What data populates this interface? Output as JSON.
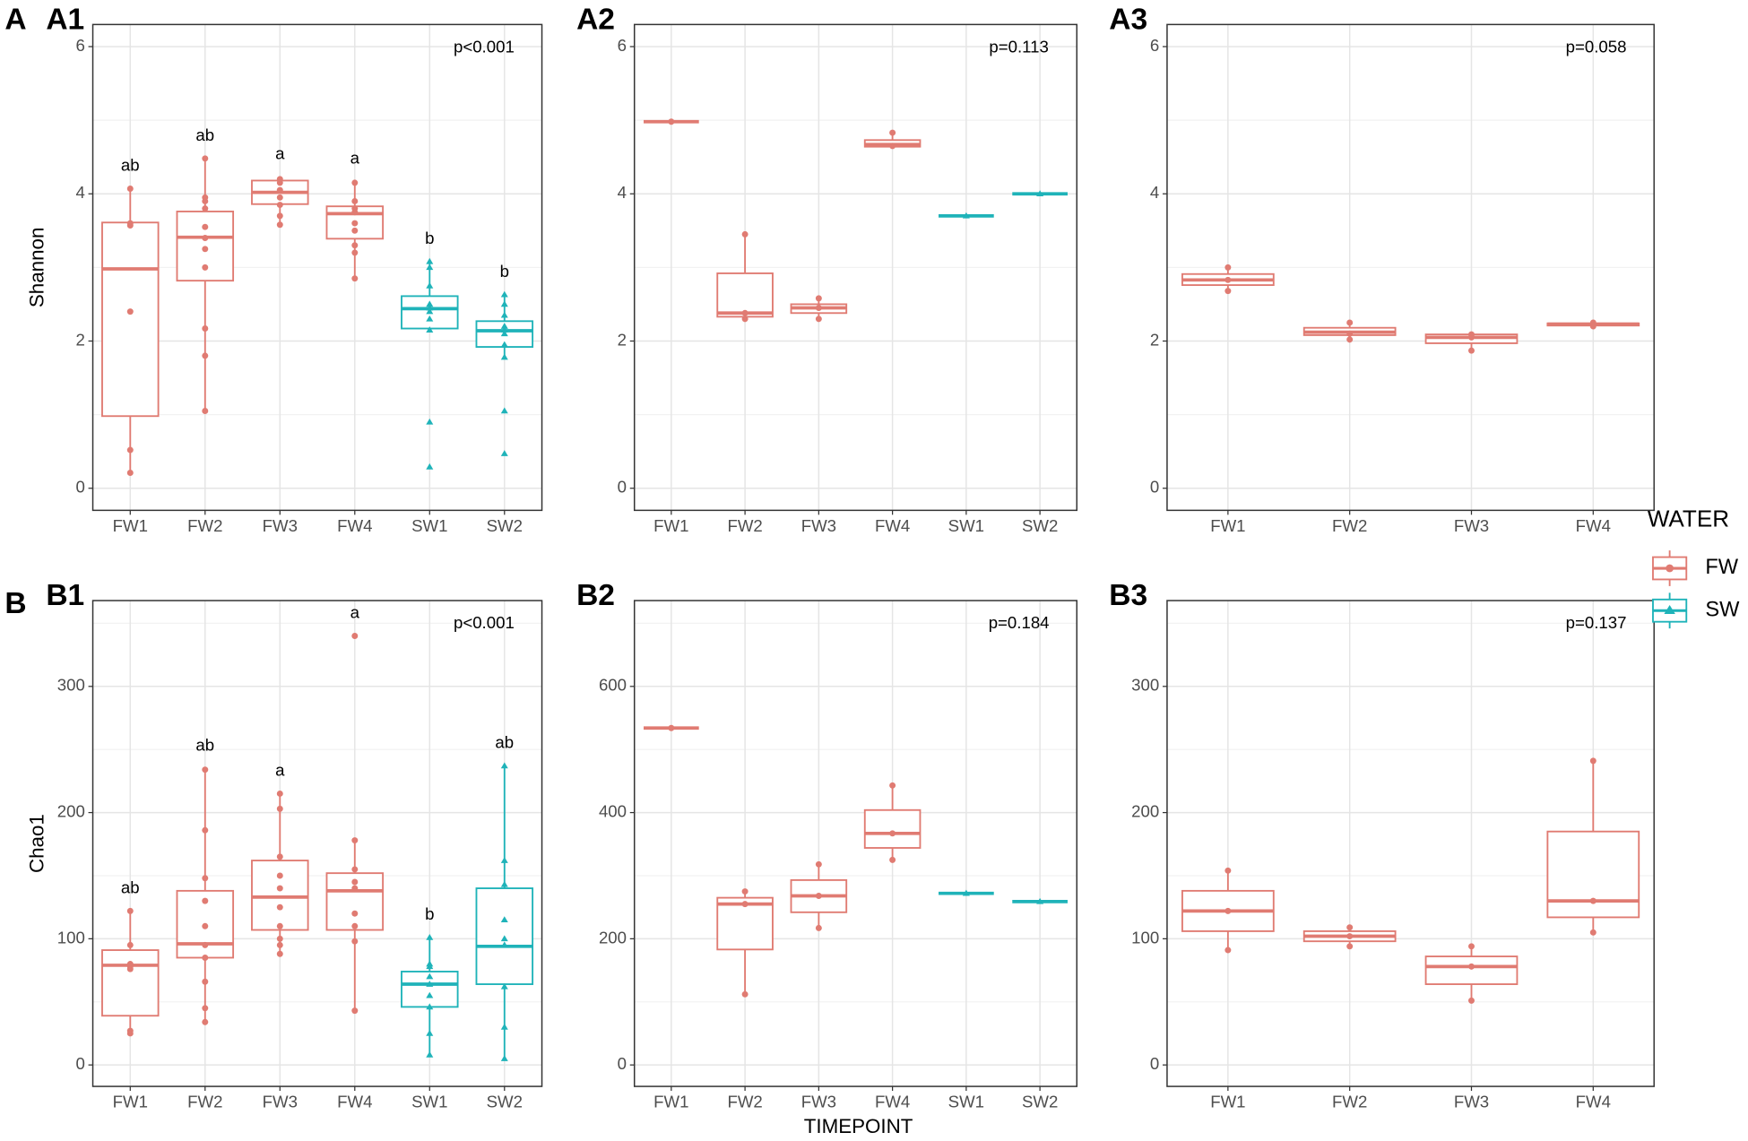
{
  "figure": {
    "row_labels": [
      "A",
      "B"
    ],
    "xlabel": "TIMEPOINT",
    "legend": {
      "title": "WATER",
      "entries": [
        {
          "name": "FW",
          "color": "#e07b72",
          "shape": "circle"
        },
        {
          "name": "SW",
          "color": "#1fb3b9",
          "shape": "triangle"
        }
      ]
    }
  },
  "chart_data": [
    {
      "type": "box",
      "label": "A1",
      "ylabel": "Shannon",
      "annotation": "p<0.001",
      "ylim": [
        -0.3,
        6.3
      ],
      "yticks": [
        0,
        2,
        4,
        6
      ],
      "grid": true,
      "categories": [
        "FW1",
        "FW2",
        "FW3",
        "FW4",
        "SW1",
        "SW2"
      ],
      "boxes": [
        {
          "color": "#e07b72",
          "shape": "circle",
          "min": 0.21,
          "q1": 0.98,
          "median": 2.98,
          "q3": 3.61,
          "max": 4.07,
          "points": [
            4.07,
            3.6,
            3.57,
            2.4,
            0.52,
            0.21
          ],
          "letter": "ab"
        },
        {
          "color": "#e07b72",
          "shape": "circle",
          "min": 1.05,
          "q1": 2.82,
          "median": 3.41,
          "q3": 3.76,
          "max": 4.48,
          "points": [
            4.48,
            3.95,
            3.9,
            3.8,
            3.55,
            3.4,
            3.25,
            3.0,
            2.17,
            1.8,
            1.05
          ],
          "letter": "ab"
        },
        {
          "color": "#e07b72",
          "shape": "circle",
          "min": 3.58,
          "q1": 3.86,
          "median": 4.02,
          "q3": 4.18,
          "max": 4.23,
          "points": [
            4.2,
            4.15,
            4.05,
            3.95,
            3.85,
            3.7,
            3.58
          ],
          "letter": "a"
        },
        {
          "color": "#e07b72",
          "shape": "circle",
          "min": 2.83,
          "q1": 3.39,
          "median": 3.73,
          "q3": 3.83,
          "max": 4.17,
          "points": [
            4.15,
            3.9,
            3.8,
            3.75,
            3.6,
            3.5,
            3.3,
            3.2,
            2.85
          ],
          "letter": "a"
        },
        {
          "color": "#1fb3b9",
          "shape": "triangle",
          "min": 2.12,
          "q1": 2.17,
          "median": 2.44,
          "q3": 2.61,
          "max": 3.08,
          "points": [
            3.08,
            3.0,
            2.75,
            2.5,
            2.45,
            2.4,
            2.3,
            2.15,
            0.9,
            0.29
          ],
          "letter": "b"
        },
        {
          "color": "#1fb3b9",
          "shape": "triangle",
          "min": 1.78,
          "q1": 1.92,
          "median": 2.14,
          "q3": 2.27,
          "max": 2.63,
          "points": [
            2.63,
            2.5,
            2.35,
            2.2,
            2.15,
            2.1,
            1.95,
            1.78,
            1.05,
            0.47
          ],
          "letter": "b"
        }
      ]
    },
    {
      "type": "box",
      "label": "A2",
      "annotation": "p=0.113",
      "ylim": [
        -0.3,
        6.3
      ],
      "yticks": [
        0,
        2,
        4,
        6
      ],
      "grid": true,
      "categories": [
        "FW1",
        "FW2",
        "FW3",
        "FW4",
        "SW1",
        "SW2"
      ],
      "boxes": [
        {
          "color": "#e07b72",
          "shape": "circle",
          "min": 4.98,
          "q1": 4.98,
          "median": 4.98,
          "q3": 4.98,
          "max": 4.98,
          "points": [
            4.98
          ]
        },
        {
          "color": "#e07b72",
          "shape": "circle",
          "min": 2.3,
          "q1": 2.33,
          "median": 2.38,
          "q3": 2.92,
          "max": 3.45,
          "points": [
            3.45,
            2.38,
            2.3
          ]
        },
        {
          "color": "#e07b72",
          "shape": "circle",
          "min": 2.3,
          "q1": 2.38,
          "median": 2.45,
          "q3": 2.5,
          "max": 2.58,
          "points": [
            2.58,
            2.45,
            2.3
          ]
        },
        {
          "color": "#e07b72",
          "shape": "circle",
          "min": 4.64,
          "q1": 4.64,
          "median": 4.67,
          "q3": 4.73,
          "max": 4.83,
          "points": [
            4.83,
            4.65
          ]
        },
        {
          "color": "#1fb3b9",
          "shape": "triangle",
          "min": 3.7,
          "q1": 3.7,
          "median": 3.7,
          "q3": 3.7,
          "max": 3.7,
          "points": [
            3.7
          ]
        },
        {
          "color": "#1fb3b9",
          "shape": "triangle",
          "min": 4.0,
          "q1": 4.0,
          "median": 4.0,
          "q3": 4.0,
          "max": 4.0,
          "points": [
            4.0
          ]
        }
      ]
    },
    {
      "type": "box",
      "label": "A3",
      "annotation": "p=0.058",
      "ylim": [
        -0.3,
        6.3
      ],
      "yticks": [
        0,
        2,
        4,
        6
      ],
      "grid": true,
      "categories": [
        "FW1",
        "FW2",
        "FW3",
        "FW4"
      ],
      "boxes": [
        {
          "color": "#e07b72",
          "shape": "circle",
          "min": 2.68,
          "q1": 2.76,
          "median": 2.83,
          "q3": 2.91,
          "max": 3.0,
          "points": [
            3.0,
            2.83,
            2.68
          ]
        },
        {
          "color": "#e07b72",
          "shape": "circle",
          "min": 2.02,
          "q1": 2.08,
          "median": 2.12,
          "q3": 2.18,
          "max": 2.25,
          "points": [
            2.25,
            2.1,
            2.02
          ]
        },
        {
          "color": "#e07b72",
          "shape": "circle",
          "min": 1.87,
          "q1": 1.97,
          "median": 2.05,
          "q3": 2.09,
          "max": 2.09,
          "points": [
            2.09,
            2.05,
            1.87
          ]
        },
        {
          "color": "#e07b72",
          "shape": "circle",
          "min": 2.2,
          "q1": 2.21,
          "median": 2.23,
          "q3": 2.24,
          "max": 2.25,
          "points": [
            2.25,
            2.2
          ]
        }
      ]
    },
    {
      "type": "box",
      "label": "B1",
      "ylabel": "Chao1",
      "annotation": "p<0.001",
      "ylim": [
        -17,
        368
      ],
      "yticks": [
        0,
        100,
        200,
        300
      ],
      "grid": true,
      "categories": [
        "FW1",
        "FW2",
        "FW3",
        "FW4",
        "SW1",
        "SW2"
      ],
      "boxes": [
        {
          "color": "#e07b72",
          "shape": "circle",
          "min": 25,
          "q1": 39,
          "median": 79,
          "q3": 91,
          "max": 122,
          "points": [
            122,
            95,
            80,
            78,
            76,
            27,
            25
          ],
          "letter": "ab"
        },
        {
          "color": "#e07b72",
          "shape": "circle",
          "min": 34,
          "q1": 85,
          "median": 96,
          "q3": 138,
          "max": 235,
          "points": [
            234,
            186,
            148,
            130,
            110,
            95,
            85,
            66,
            45,
            34
          ],
          "letter": "ab"
        },
        {
          "color": "#e07b72",
          "shape": "circle",
          "min": 88,
          "q1": 107,
          "median": 133,
          "q3": 162,
          "max": 215,
          "points": [
            215,
            203,
            165,
            150,
            140,
            125,
            110,
            100,
            95,
            88
          ],
          "letter": "a"
        },
        {
          "color": "#e07b72",
          "shape": "circle",
          "min": 43,
          "q1": 107,
          "median": 138,
          "q3": 152,
          "max": 178,
          "points": [
            340,
            178,
            155,
            145,
            140,
            120,
            110,
            98,
            43
          ],
          "letter": "a"
        },
        {
          "color": "#1fb3b9",
          "shape": "triangle",
          "min": 8,
          "q1": 46,
          "median": 64,
          "q3": 74,
          "max": 101,
          "points": [
            101,
            80,
            78,
            70,
            64,
            55,
            46,
            25,
            8
          ],
          "letter": "b"
        },
        {
          "color": "#1fb3b9",
          "shape": "triangle",
          "min": 5,
          "q1": 64,
          "median": 94,
          "q3": 140,
          "max": 237,
          "points": [
            237,
            162,
            143,
            115,
            100,
            95,
            62,
            30,
            5
          ],
          "letter": "ab"
        }
      ]
    },
    {
      "type": "box",
      "label": "B2",
      "annotation": "p=0.184",
      "ylim": [
        -34,
        736
      ],
      "yticks": [
        0,
        200,
        400,
        600
      ],
      "grid": true,
      "categories": [
        "FW1",
        "FW2",
        "FW3",
        "FW4",
        "SW1",
        "SW2"
      ],
      "boxes": [
        {
          "color": "#e07b72",
          "shape": "circle",
          "min": 534,
          "q1": 534,
          "median": 534,
          "q3": 534,
          "max": 534,
          "points": [
            534
          ]
        },
        {
          "color": "#e07b72",
          "shape": "circle",
          "min": 112,
          "q1": 183,
          "median": 255,
          "q3": 265,
          "max": 275,
          "points": [
            275,
            255,
            112
          ]
        },
        {
          "color": "#e07b72",
          "shape": "circle",
          "min": 217,
          "q1": 242,
          "median": 268,
          "q3": 293,
          "max": 318,
          "points": [
            318,
            268,
            217
          ]
        },
        {
          "color": "#e07b72",
          "shape": "circle",
          "min": 325,
          "q1": 344,
          "median": 367,
          "q3": 404,
          "max": 443,
          "points": [
            443,
            367,
            325
          ]
        },
        {
          "color": "#1fb3b9",
          "shape": "triangle",
          "min": 272,
          "q1": 272,
          "median": 272,
          "q3": 272,
          "max": 272,
          "points": [
            272
          ]
        },
        {
          "color": "#1fb3b9",
          "shape": "triangle",
          "min": 259,
          "q1": 259,
          "median": 259,
          "q3": 259,
          "max": 259,
          "points": [
            259
          ]
        }
      ]
    },
    {
      "type": "box",
      "label": "B3",
      "annotation": "p=0.137",
      "ylim": [
        -17,
        368
      ],
      "yticks": [
        0,
        100,
        200,
        300
      ],
      "grid": true,
      "categories": [
        "FW1",
        "FW2",
        "FW3",
        "FW4"
      ],
      "boxes": [
        {
          "color": "#e07b72",
          "shape": "circle",
          "min": 91,
          "q1": 106,
          "median": 122,
          "q3": 138,
          "max": 154,
          "points": [
            154,
            122,
            91
          ]
        },
        {
          "color": "#e07b72",
          "shape": "circle",
          "min": 94,
          "q1": 98,
          "median": 102,
          "q3": 106,
          "max": 109,
          "points": [
            109,
            102,
            94
          ]
        },
        {
          "color": "#e07b72",
          "shape": "circle",
          "min": 51,
          "q1": 64,
          "median": 78,
          "q3": 86,
          "max": 94,
          "points": [
            94,
            78,
            51
          ]
        },
        {
          "color": "#e07b72",
          "shape": "circle",
          "min": 105,
          "q1": 117,
          "median": 130,
          "q3": 185,
          "max": 241,
          "points": [
            241,
            130,
            105
          ]
        }
      ]
    }
  ]
}
